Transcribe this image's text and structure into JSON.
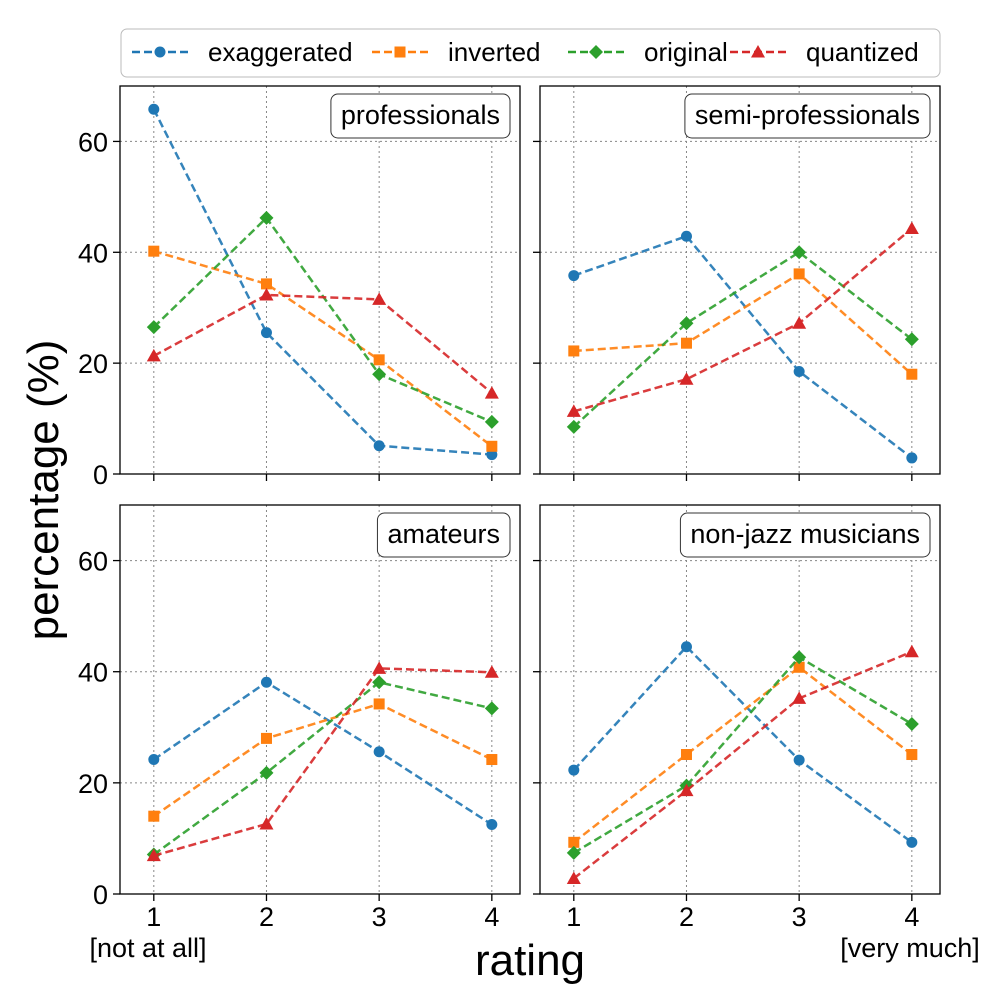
{
  "chart_data": {
    "type": "line",
    "xlabel": "rating",
    "ylabel": "percentage (%)",
    "x": [
      1,
      2,
      3,
      4
    ],
    "x_ticks": [
      "1",
      "2",
      "3",
      "4"
    ],
    "x_extremes": {
      "low": "[not at all]",
      "high": "[very much]"
    },
    "ylim": [
      0,
      70
    ],
    "xlim": [
      0.7,
      4.25
    ],
    "y_ticks": [
      0,
      20,
      40,
      60
    ],
    "grid": true,
    "legend_position": "top",
    "series_styles": [
      {
        "name": "exaggerated",
        "color": "#1f77b4",
        "marker": "circle"
      },
      {
        "name": "inverted",
        "color": "#ff7f0e",
        "marker": "square"
      },
      {
        "name": "original",
        "color": "#2ca02c",
        "marker": "diamond"
      },
      {
        "name": "quantized",
        "color": "#d62728",
        "marker": "triangle"
      }
    ],
    "panels": [
      {
        "title": "professionals",
        "series": [
          {
            "name": "exaggerated",
            "values": [
              65.8,
              25.5,
              5.1,
              3.5
            ]
          },
          {
            "name": "inverted",
            "values": [
              40.2,
              34.3,
              20.6,
              5.0
            ]
          },
          {
            "name": "original",
            "values": [
              26.5,
              46.2,
              18.0,
              9.4
            ]
          },
          {
            "name": "quantized",
            "values": [
              21.3,
              32.3,
              31.5,
              14.6
            ]
          }
        ]
      },
      {
        "title": "semi-professionals",
        "series": [
          {
            "name": "exaggerated",
            "values": [
              35.8,
              42.9,
              18.5,
              2.9
            ]
          },
          {
            "name": "inverted",
            "values": [
              22.2,
              23.6,
              36.1,
              18.0
            ]
          },
          {
            "name": "original",
            "values": [
              8.5,
              27.2,
              40.0,
              24.3
            ]
          },
          {
            "name": "quantized",
            "values": [
              11.3,
              17.1,
              27.2,
              44.3
            ]
          }
        ]
      },
      {
        "title": "amateurs",
        "series": [
          {
            "name": "exaggerated",
            "values": [
              24.2,
              38.1,
              25.6,
              12.5
            ]
          },
          {
            "name": "inverted",
            "values": [
              14.0,
              28.0,
              34.2,
              24.2
            ]
          },
          {
            "name": "original",
            "values": [
              7.1,
              21.8,
              38.1,
              33.4
            ]
          },
          {
            "name": "quantized",
            "values": [
              6.9,
              12.6,
              40.6,
              39.9
            ]
          }
        ]
      },
      {
        "title": "non-jazz musicians",
        "series": [
          {
            "name": "exaggerated",
            "values": [
              22.3,
              44.5,
              24.1,
              9.3
            ]
          },
          {
            "name": "inverted",
            "values": [
              9.3,
              25.1,
              40.8,
              25.1
            ]
          },
          {
            "name": "original",
            "values": [
              7.4,
              19.5,
              42.6,
              30.6
            ]
          },
          {
            "name": "quantized",
            "values": [
              2.8,
              18.6,
              35.2,
              43.6
            ]
          }
        ]
      }
    ]
  }
}
